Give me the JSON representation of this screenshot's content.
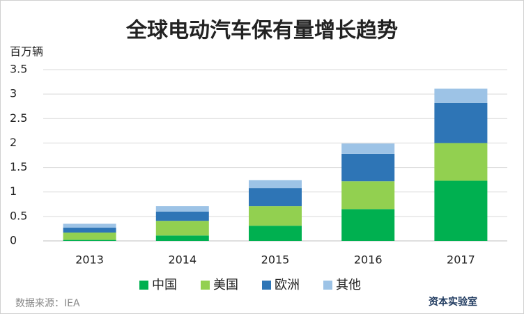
{
  "chart_data": {
    "type": "stacked-bar",
    "title": "全球电动汽车保有量增长趋势",
    "y_label": "百万辆",
    "categories": [
      "2013",
      "2014",
      "2015",
      "2016",
      "2017"
    ],
    "series": [
      {
        "name": "中国",
        "color": "#00b050",
        "values": [
          0.02,
          0.11,
          0.31,
          0.65,
          1.23
        ]
      },
      {
        "name": "美国",
        "color": "#92d050",
        "values": [
          0.15,
          0.3,
          0.4,
          0.57,
          0.77
        ]
      },
      {
        "name": "欧洲",
        "color": "#2e75b6",
        "values": [
          0.1,
          0.19,
          0.37,
          0.56,
          0.82
        ]
      },
      {
        "name": "其他",
        "color": "#9dc3e6",
        "values": [
          0.08,
          0.11,
          0.16,
          0.21,
          0.29
        ]
      }
    ],
    "ylim": [
      0,
      3.5
    ],
    "yticks": [
      0,
      0.5,
      1,
      1.5,
      2,
      2.5,
      3,
      3.5
    ],
    "grid": true,
    "legend": "bottom",
    "source": "数据来源：IEA",
    "logo": "资本实验室"
  }
}
